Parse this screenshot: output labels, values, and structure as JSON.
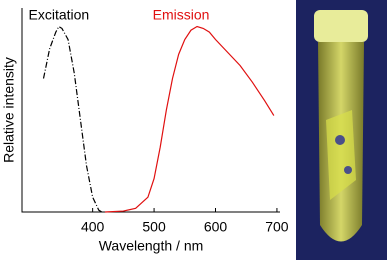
{
  "chart_data": {
    "type": "line",
    "x_label": "Wavelength / nm",
    "y_label": "Relative intensity",
    "xlim": [
      285,
      705
    ],
    "ylim": [
      0,
      1.1
    ],
    "xticks": [
      400,
      500,
      600,
      700
    ],
    "series": [
      {
        "name": "Excitation",
        "color": "#000000",
        "dash": "6,2,1,2",
        "x": [
          320,
          330,
          340,
          345,
          350,
          360,
          370,
          380,
          390,
          400,
          410,
          415
        ],
        "values": [
          0.72,
          0.88,
          0.97,
          1.0,
          0.99,
          0.93,
          0.75,
          0.5,
          0.25,
          0.08,
          0.01,
          0.0
        ]
      },
      {
        "name": "Emission",
        "color": "#e01010",
        "x": [
          420,
          450,
          470,
          490,
          500,
          510,
          520,
          530,
          540,
          550,
          560,
          570,
          580,
          590,
          600,
          620,
          640,
          660,
          680,
          695
        ],
        "values": [
          0.0,
          0.005,
          0.02,
          0.08,
          0.18,
          0.35,
          0.55,
          0.72,
          0.85,
          0.93,
          0.98,
          1.0,
          0.99,
          0.97,
          0.93,
          0.86,
          0.79,
          0.7,
          0.6,
          0.52
        ]
      }
    ]
  }
}
